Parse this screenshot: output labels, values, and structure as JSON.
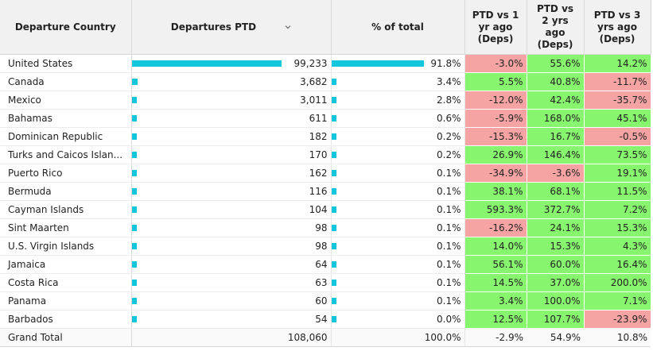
{
  "header": {
    "country": "Departure Country",
    "departures": "Departures PTD",
    "pct": "% of total",
    "vs1": [
      "PTD vs 1",
      "yr ago",
      "(Deps)"
    ],
    "vs2": [
      "PTD vs",
      "2 yrs",
      "ago",
      "(Deps)"
    ],
    "vs3": [
      "PTD vs 3",
      "yrs ago",
      "(Deps)"
    ]
  },
  "icons": {
    "sort": "chevron-down-icon"
  },
  "colors": {
    "bar": "#12c6dc",
    "positive": "#88f56e",
    "negative": "#f5a3a3"
  },
  "rows": [
    {
      "country": "United States",
      "departures": "99,233",
      "dep_value": 99233,
      "pct": "91.8%",
      "pct_value": 91.8,
      "vs1": "-3.0%",
      "vs2": "55.6%",
      "vs3": "14.2%"
    },
    {
      "country": "Canada",
      "departures": "3,682",
      "dep_value": 3682,
      "pct": "3.4%",
      "pct_value": 3.4,
      "vs1": "5.5%",
      "vs2": "40.8%",
      "vs3": "-11.7%"
    },
    {
      "country": "Mexico",
      "departures": "3,011",
      "dep_value": 3011,
      "pct": "2.8%",
      "pct_value": 2.8,
      "vs1": "-12.0%",
      "vs2": "42.4%",
      "vs3": "-35.7%"
    },
    {
      "country": "Bahamas",
      "departures": "611",
      "dep_value": 611,
      "pct": "0.6%",
      "pct_value": 0.6,
      "vs1": "-5.9%",
      "vs2": "168.0%",
      "vs3": "45.1%"
    },
    {
      "country": "Dominican Republic",
      "departures": "182",
      "dep_value": 182,
      "pct": "0.2%",
      "pct_value": 0.2,
      "vs1": "-15.3%",
      "vs2": "16.7%",
      "vs3": "-0.5%"
    },
    {
      "country": "Turks and Caicos Islan...",
      "departures": "170",
      "dep_value": 170,
      "pct": "0.2%",
      "pct_value": 0.2,
      "vs1": "26.9%",
      "vs2": "146.4%",
      "vs3": "73.5%"
    },
    {
      "country": "Puerto Rico",
      "departures": "162",
      "dep_value": 162,
      "pct": "0.1%",
      "pct_value": 0.1,
      "vs1": "-34.9%",
      "vs2": "-3.6%",
      "vs3": "19.1%"
    },
    {
      "country": "Bermuda",
      "departures": "116",
      "dep_value": 116,
      "pct": "0.1%",
      "pct_value": 0.1,
      "vs1": "38.1%",
      "vs2": "68.1%",
      "vs3": "11.5%"
    },
    {
      "country": "Cayman Islands",
      "departures": "104",
      "dep_value": 104,
      "pct": "0.1%",
      "pct_value": 0.1,
      "vs1": "593.3%",
      "vs2": "372.7%",
      "vs3": "7.2%"
    },
    {
      "country": "Sint Maarten",
      "departures": "98",
      "dep_value": 98,
      "pct": "0.1%",
      "pct_value": 0.1,
      "vs1": "-16.2%",
      "vs2": "24.1%",
      "vs3": "15.3%"
    },
    {
      "country": "U.S. Virgin Islands",
      "departures": "98",
      "dep_value": 98,
      "pct": "0.1%",
      "pct_value": 0.1,
      "vs1": "14.0%",
      "vs2": "15.3%",
      "vs3": "4.3%"
    },
    {
      "country": "Jamaica",
      "departures": "64",
      "dep_value": 64,
      "pct": "0.1%",
      "pct_value": 0.1,
      "vs1": "56.1%",
      "vs2": "60.0%",
      "vs3": "16.4%"
    },
    {
      "country": "Costa Rica",
      "departures": "63",
      "dep_value": 63,
      "pct": "0.1%",
      "pct_value": 0.1,
      "vs1": "14.5%",
      "vs2": "37.0%",
      "vs3": "200.0%"
    },
    {
      "country": "Panama",
      "departures": "60",
      "dep_value": 60,
      "pct": "0.1%",
      "pct_value": 0.1,
      "vs1": "3.4%",
      "vs2": "100.0%",
      "vs3": "7.1%"
    },
    {
      "country": "Barbados",
      "departures": "54",
      "dep_value": 54,
      "pct": "0.0%",
      "pct_value": 0.0,
      "vs1": "12.5%",
      "vs2": "107.7%",
      "vs3": "-23.9%"
    }
  ],
  "total": {
    "label": "Grand Total",
    "departures": "108,060",
    "pct": "100.0%",
    "vs1": "-2.9%",
    "vs2": "54.9%",
    "vs3": "10.8%"
  }
}
